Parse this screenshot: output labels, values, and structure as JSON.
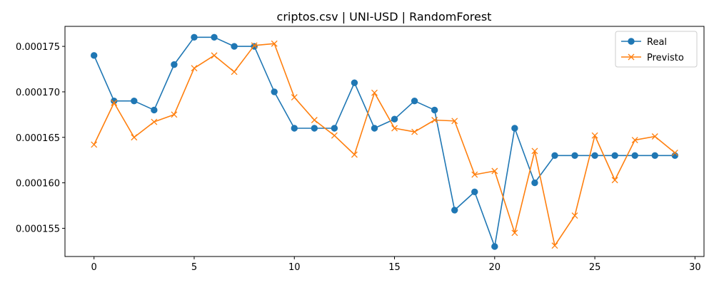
{
  "chart_data": {
    "type": "line",
    "title": "criptos.csv | UNI-USD | RandomForest",
    "xlabel": "",
    "ylabel": "",
    "xlim": [
      -1.45,
      30.45
    ],
    "ylim": [
      0.0001519,
      0.0001772
    ],
    "x_ticks": [
      0,
      5,
      10,
      15,
      20,
      25,
      30
    ],
    "x_tick_labels": [
      "0",
      "5",
      "10",
      "15",
      "20",
      "25",
      "30"
    ],
    "y_ticks": [
      0.000155,
      0.00016,
      0.000165,
      0.00017,
      0.000175
    ],
    "y_tick_labels": [
      "0.000155",
      "0.000160",
      "0.000165",
      "0.000170",
      "0.000175"
    ],
    "grid": false,
    "legend_position": "top-right",
    "x": [
      0,
      1,
      2,
      3,
      4,
      5,
      6,
      7,
      8,
      9,
      10,
      11,
      12,
      13,
      14,
      15,
      16,
      17,
      18,
      19,
      20,
      21,
      22,
      23,
      24,
      25,
      26,
      27,
      28,
      29
    ],
    "series": [
      {
        "name": "Real",
        "color": "#1f77b4",
        "marker": "circle",
        "values": [
          0.000174,
          0.000169,
          0.000169,
          0.000168,
          0.000173,
          0.000176,
          0.000176,
          0.000175,
          0.000175,
          0.00017,
          0.000166,
          0.000166,
          0.000166,
          0.000171,
          0.000166,
          0.000167,
          0.000169,
          0.000168,
          0.000157,
          0.000159,
          0.000153,
          0.000166,
          0.00016,
          0.000163,
          0.000163,
          0.000163,
          0.000163,
          0.000163,
          0.000163,
          0.000163
        ]
      },
      {
        "name": "Previsto",
        "color": "#ff7f0e",
        "marker": "x",
        "values": [
          0.0001642,
          0.0001688,
          0.000165,
          0.0001667,
          0.0001675,
          0.0001726,
          0.000174,
          0.0001722,
          0.0001751,
          0.0001753,
          0.0001694,
          0.0001669,
          0.0001652,
          0.0001631,
          0.0001699,
          0.000166,
          0.0001656,
          0.0001669,
          0.0001668,
          0.0001609,
          0.0001613,
          0.0001545,
          0.0001635,
          0.0001531,
          0.0001564,
          0.0001652,
          0.0001603,
          0.0001647,
          0.0001651,
          0.0001633
        ]
      }
    ]
  }
}
